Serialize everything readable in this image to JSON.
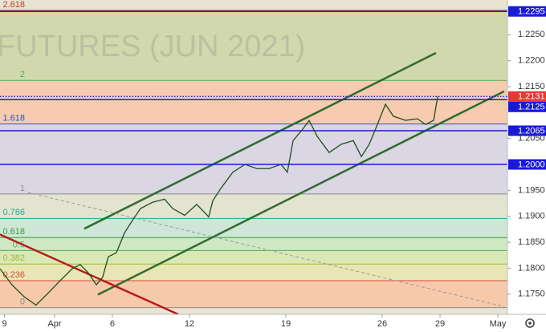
{
  "watermark": "FUTURES (JUN 2021)",
  "chart_data": {
    "type": "line",
    "color": "#1f4d1f",
    "x": [
      -2.83,
      -2.21,
      -1.58,
      -0.96,
      -0.33,
      0.29,
      0.92,
      1.33,
      1.75,
      2.17,
      2.5,
      2.79,
      3.21,
      3.63,
      4.04,
      4.46,
      5.08,
      5.71,
      6.13,
      6.75,
      7.38,
      8.0,
      8.21,
      8.63,
      9.25,
      9.88,
      10.5,
      11.13,
      11.75,
      12.08,
      12.38,
      12.92,
      13.21,
      13.63,
      14.25,
      14.88,
      15.5,
      15.92,
      16.33,
      16.75,
      17.17,
      17.58,
      18.21,
      18.83,
      19.25,
      19.67,
      19.88
    ],
    "values": [
      1.1799,
      1.1768,
      1.1745,
      1.1729,
      1.1752,
      1.1776,
      1.1799,
      1.1807,
      1.1791,
      1.1768,
      1.1783,
      1.1822,
      1.183,
      1.1868,
      1.1892,
      1.1915,
      1.1927,
      1.1933,
      1.1915,
      1.1902,
      1.1923,
      1.1899,
      1.193,
      1.1954,
      1.1985,
      1.2,
      1.1992,
      1.1992,
      1.2,
      1.1985,
      1.2046,
      1.207,
      1.2085,
      1.2054,
      1.2023,
      1.2039,
      1.2046,
      1.2015,
      1.2039,
      1.2077,
      1.2116,
      1.2093,
      1.2085,
      1.2088,
      1.2077,
      1.2085,
      1.2131
    ],
    "xlim": [
      -2.83,
      23.5
    ],
    "xticks": [
      {
        "value": -2.6,
        "label": "9"
      },
      {
        "value": 0,
        "label": "Apr"
      },
      {
        "value": 3,
        "label": "6"
      },
      {
        "value": 7,
        "label": "12"
      },
      {
        "value": 12,
        "label": "19"
      },
      {
        "value": 17,
        "label": "26"
      },
      {
        "value": 20,
        "label": "29"
      },
      {
        "value": 23,
        "label": "May"
      }
    ],
    "ylim": [
      1.1711,
      1.2317
    ],
    "yticks": [
      {
        "value": 1.175,
        "label": "1.1750"
      },
      {
        "value": 1.18,
        "label": "1.1800"
      },
      {
        "value": 1.185,
        "label": "1.1850"
      },
      {
        "value": 1.19,
        "label": "1.1900"
      },
      {
        "value": 1.195,
        "label": "1.1950"
      },
      {
        "value": 1.205,
        "label": "1.2050"
      },
      {
        "value": 1.215,
        "label": "1.2150"
      },
      {
        "value": 1.22,
        "label": "1.2200"
      },
      {
        "value": 1.225,
        "label": "1.2250"
      }
    ],
    "fib_levels": [
      {
        "ratio": 0,
        "value": 1.1724,
        "color": "#8a8a8a",
        "fill": "#f7c9ab"
      },
      {
        "ratio": 0.236,
        "value": 1.1776,
        "color": "#d84a3a",
        "fill": "#e8e6b4"
      },
      {
        "ratio": 0.382,
        "value": 1.1808,
        "color": "#9bb63a",
        "fill": "#d9e9b6"
      },
      {
        "ratio": 0.5,
        "value": 1.1834,
        "color": "#4caf50",
        "fill": "#cfe8c4"
      },
      {
        "ratio": 0.618,
        "value": 1.1859,
        "color": "#3d9b3d",
        "fill": "#cde6d6"
      },
      {
        "ratio": 0.786,
        "value": 1.1896,
        "color": "#2aa2a2",
        "fill": "#e3e4cf"
      },
      {
        "ratio": 1,
        "value": 1.1943,
        "color": "#8a8a8a",
        "fill": "#dbd6e3"
      },
      {
        "ratio": 1.618,
        "value": 1.2078,
        "color": "#3050c0",
        "fill": "#f7cbb0"
      },
      {
        "ratio": 2,
        "value": 1.2162,
        "color": "#4caf50",
        "fill": "#d2d8ad"
      },
      {
        "ratio": 2.618,
        "value": 1.2297,
        "color": "#c0392b"
      }
    ],
    "level_color": "#1a1ad6",
    "levels": [
      1.2295,
      1.2125,
      1.2065,
      {
        "value": 1.2,
        "label": "1.2000"
      }
    ],
    "last_price": 1.2131,
    "last_price_color": "#e53935",
    "trendlines": [
      {
        "x": [
          1.54,
          19.79
        ],
        "y": [
          1.1876,
          1.2215
        ],
        "color": "#2e6b2e"
      },
      {
        "x": [
          2.25,
          23.33
        ],
        "y": [
          1.1749,
          1.2141
        ],
        "color": "#2e6b2e"
      },
      {
        "x": [
          -2.83,
          6.42
        ],
        "y": [
          1.1865,
          1.1711
        ],
        "color": "#b71c1c"
      },
      {
        "x": [
          -1.38,
          23.33
        ],
        "y": [
          1.1946,
          1.1726
        ],
        "color": "#999999",
        "dashed": true
      }
    ]
  }
}
